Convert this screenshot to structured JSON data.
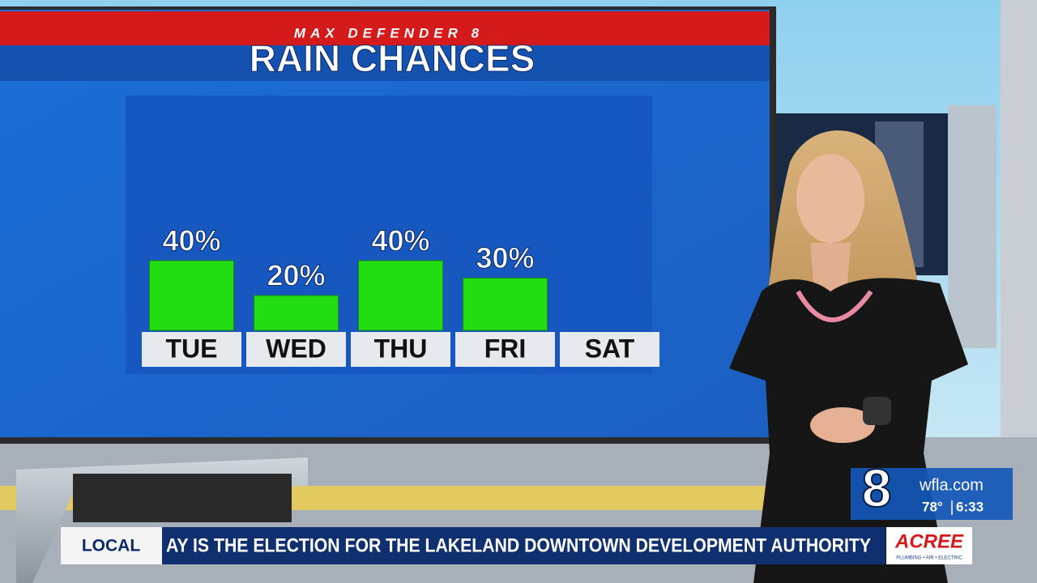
{
  "chart_data": {
    "type": "bar",
    "supertitle": "MAX DEFENDER 8",
    "title": "RAIN CHANCES",
    "categories": [
      "TUE",
      "WED",
      "THU",
      "FRI",
      "SAT"
    ],
    "values": [
      40,
      20,
      40,
      30,
      null
    ],
    "value_labels": [
      "40%",
      "20%",
      "40%",
      "30%",
      null
    ],
    "color": "#22dd11"
  },
  "broadcast": {
    "section": "LOCAL",
    "ticker": "AY IS THE ELECTION FOR THE LAKELAND DOWNTOWN DEVELOPMENT AUTHORITY",
    "channel": "8",
    "website": "wfla.com",
    "temperature": "78°",
    "time": "6:33",
    "sponsor": "ACREE",
    "sponsor_tagline": "PLUMBING • AIR • ELECTRIC"
  }
}
